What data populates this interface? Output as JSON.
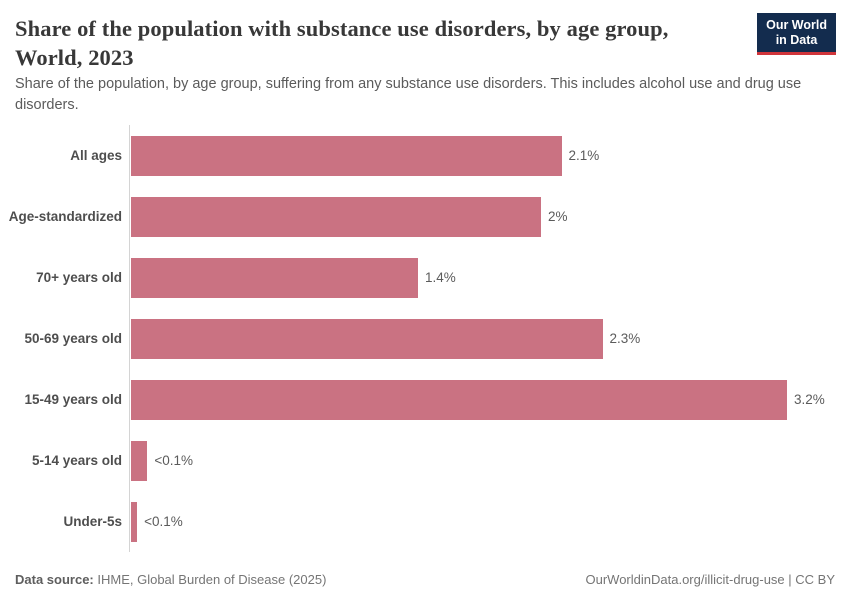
{
  "header": {
    "title": "Share of the population with substance use disorders, by age group, World, 2023",
    "title_line1": "Share of the population with substance use disorders, by age group,",
    "title_line2": "World, 2023",
    "subtitle": "Share of the population, by age group, suffering from any substance use disorders. This includes alcohol use and drug use disorders.",
    "logo": {
      "line1": "Our World",
      "line2": "in Data",
      "bg_color": "#132c4e",
      "accent_color": "#d0353b"
    }
  },
  "chart_data": {
    "type": "bar",
    "orientation": "horizontal",
    "unit": "%",
    "title": "Share of the population with substance use disorders, by age group, World, 2023",
    "categories": [
      "All ages",
      "Age-standardized",
      "70+ years old",
      "50-69 years old",
      "15-49 years old",
      "5-14 years old",
      "Under-5s"
    ],
    "values": [
      2.1,
      2.0,
      1.4,
      2.3,
      3.2,
      0.08,
      0.03
    ],
    "value_labels": [
      "2.1%",
      "2%",
      "1.4%",
      "2.3%",
      "3.2%",
      "<0.1%",
      "<0.1%"
    ],
    "xlim": [
      0,
      3.2
    ],
    "bar_color": "#ca7282",
    "grid": false,
    "legend": "none",
    "axis_color": "#d4d4d4"
  },
  "footer": {
    "source_label": "Data source:",
    "source_value": "IHME, Global Burden of Disease (2025)",
    "credit": "OurWorldinData.org/illicit-drug-use | CC BY"
  }
}
